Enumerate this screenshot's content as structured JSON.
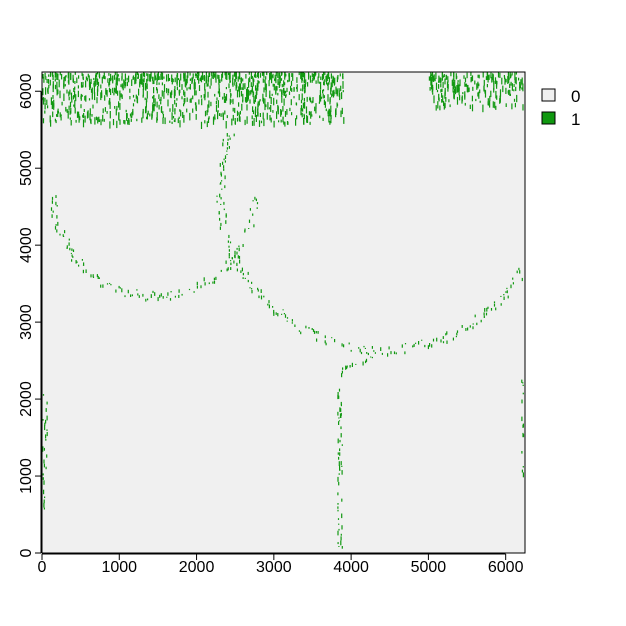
{
  "chart_data": {
    "type": "heatmap",
    "title": "",
    "xlabel": "",
    "ylabel": "",
    "xlim": [
      0,
      6250
    ],
    "ylim": [
      0,
      6250
    ],
    "x_ticks": [
      "0",
      "1000",
      "2000",
      "3000",
      "4000",
      "5000",
      "6000"
    ],
    "y_ticks": [
      "0",
      "1000",
      "2000",
      "3000",
      "4000",
      "5000",
      "6000"
    ],
    "x_tick_values": [
      0,
      1000,
      2000,
      3000,
      4000,
      5000,
      6000
    ],
    "y_tick_values": [
      0,
      1000,
      2000,
      3000,
      4000,
      5000,
      6000
    ],
    "legend": {
      "position": "top-right",
      "entries": [
        {
          "label": "0",
          "color": "#f0f0f0"
        },
        {
          "label": "1",
          "color": "#109810"
        }
      ]
    },
    "background_value": "0",
    "grid": false,
    "features": {
      "boundary_arcs": [
        {
          "cx": 1450,
          "cy": 4650,
          "r": 1300,
          "from_deg": 180,
          "to_deg": 360,
          "value": "1"
        },
        {
          "cx": 4400,
          "cy": 4750,
          "r": 2100,
          "from_deg": 160,
          "to_deg": 360,
          "value": "1"
        }
      ],
      "boundary_lines": [
        {
          "x1": 3850,
          "y1": 0,
          "x2": 3850,
          "y2": 2400,
          "value": "1"
        },
        {
          "x1": 3850,
          "y1": 2400,
          "x2": 4300,
          "y2": 2550,
          "value": "1"
        },
        {
          "x1": 30,
          "y1": 600,
          "x2": 30,
          "y2": 2100,
          "value": "1"
        },
        {
          "x1": 6230,
          "y1": 1000,
          "x2": 6230,
          "y2": 2300,
          "value": "1"
        }
      ],
      "dense_bands": [
        {
          "x0": 0,
          "x1": 3900,
          "y0": 5600,
          "y1": 6250,
          "value": "1"
        },
        {
          "x0": 5000,
          "x1": 6250,
          "y0": 5800,
          "y1": 6250,
          "value": "1"
        }
      ]
    }
  }
}
